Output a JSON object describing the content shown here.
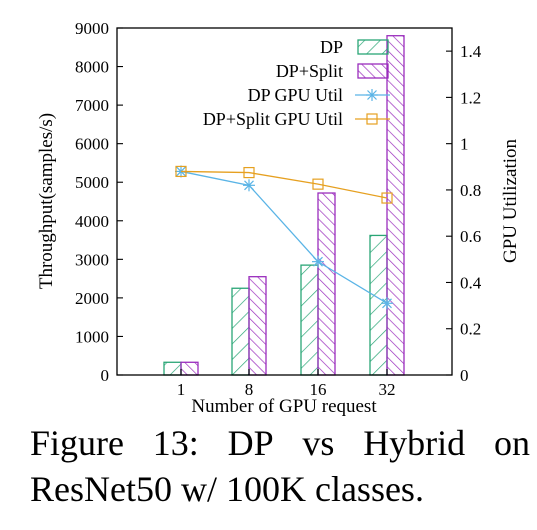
{
  "chart_data": {
    "type": "bar",
    "categories": [
      "1",
      "8",
      "16",
      "32"
    ],
    "series": [
      {
        "name": "DP",
        "kind": "bar",
        "axis": "left",
        "color": "#2aa676",
        "pattern": "hatch-forward",
        "values": [
          330,
          2250,
          2850,
          3620
        ]
      },
      {
        "name": "DP+Split",
        "kind": "bar",
        "axis": "left",
        "color": "#9a2dbd",
        "pattern": "hatch-backward",
        "values": [
          330,
          2550,
          4720,
          8800
        ]
      },
      {
        "name": "DP GPU Util",
        "kind": "line",
        "axis": "right",
        "color": "#5ab4e6",
        "marker": "asterisk",
        "values": [
          0.88,
          0.82,
          0.49,
          0.31
        ]
      },
      {
        "name": "DP+Split GPU Util",
        "kind": "line",
        "axis": "right",
        "color": "#e6a020",
        "marker": "square",
        "values": [
          0.88,
          0.875,
          0.825,
          0.765
        ]
      }
    ],
    "xlabel": "Number of GPU request",
    "ylabel": "Throughput(samples/s)",
    "y2label": "GPU Utilization",
    "ylim": [
      0,
      9000
    ],
    "yticks": [
      "0",
      "1000",
      "2000",
      "3000",
      "4000",
      "5000",
      "6000",
      "7000",
      "8000",
      "9000"
    ],
    "y2lim": [
      0,
      1.5
    ],
    "y2ticks": [
      "0",
      "0.2",
      "0.4",
      "0.6",
      "0.8",
      "1",
      "1.2",
      "1.4"
    ],
    "legend_position": "top-right",
    "grid": false
  },
  "caption": {
    "line1_words": [
      "Figure",
      "13:",
      "DP",
      "vs",
      "Hybrid",
      "on"
    ],
    "line2": "ResNet50 w/ 100K classes."
  }
}
